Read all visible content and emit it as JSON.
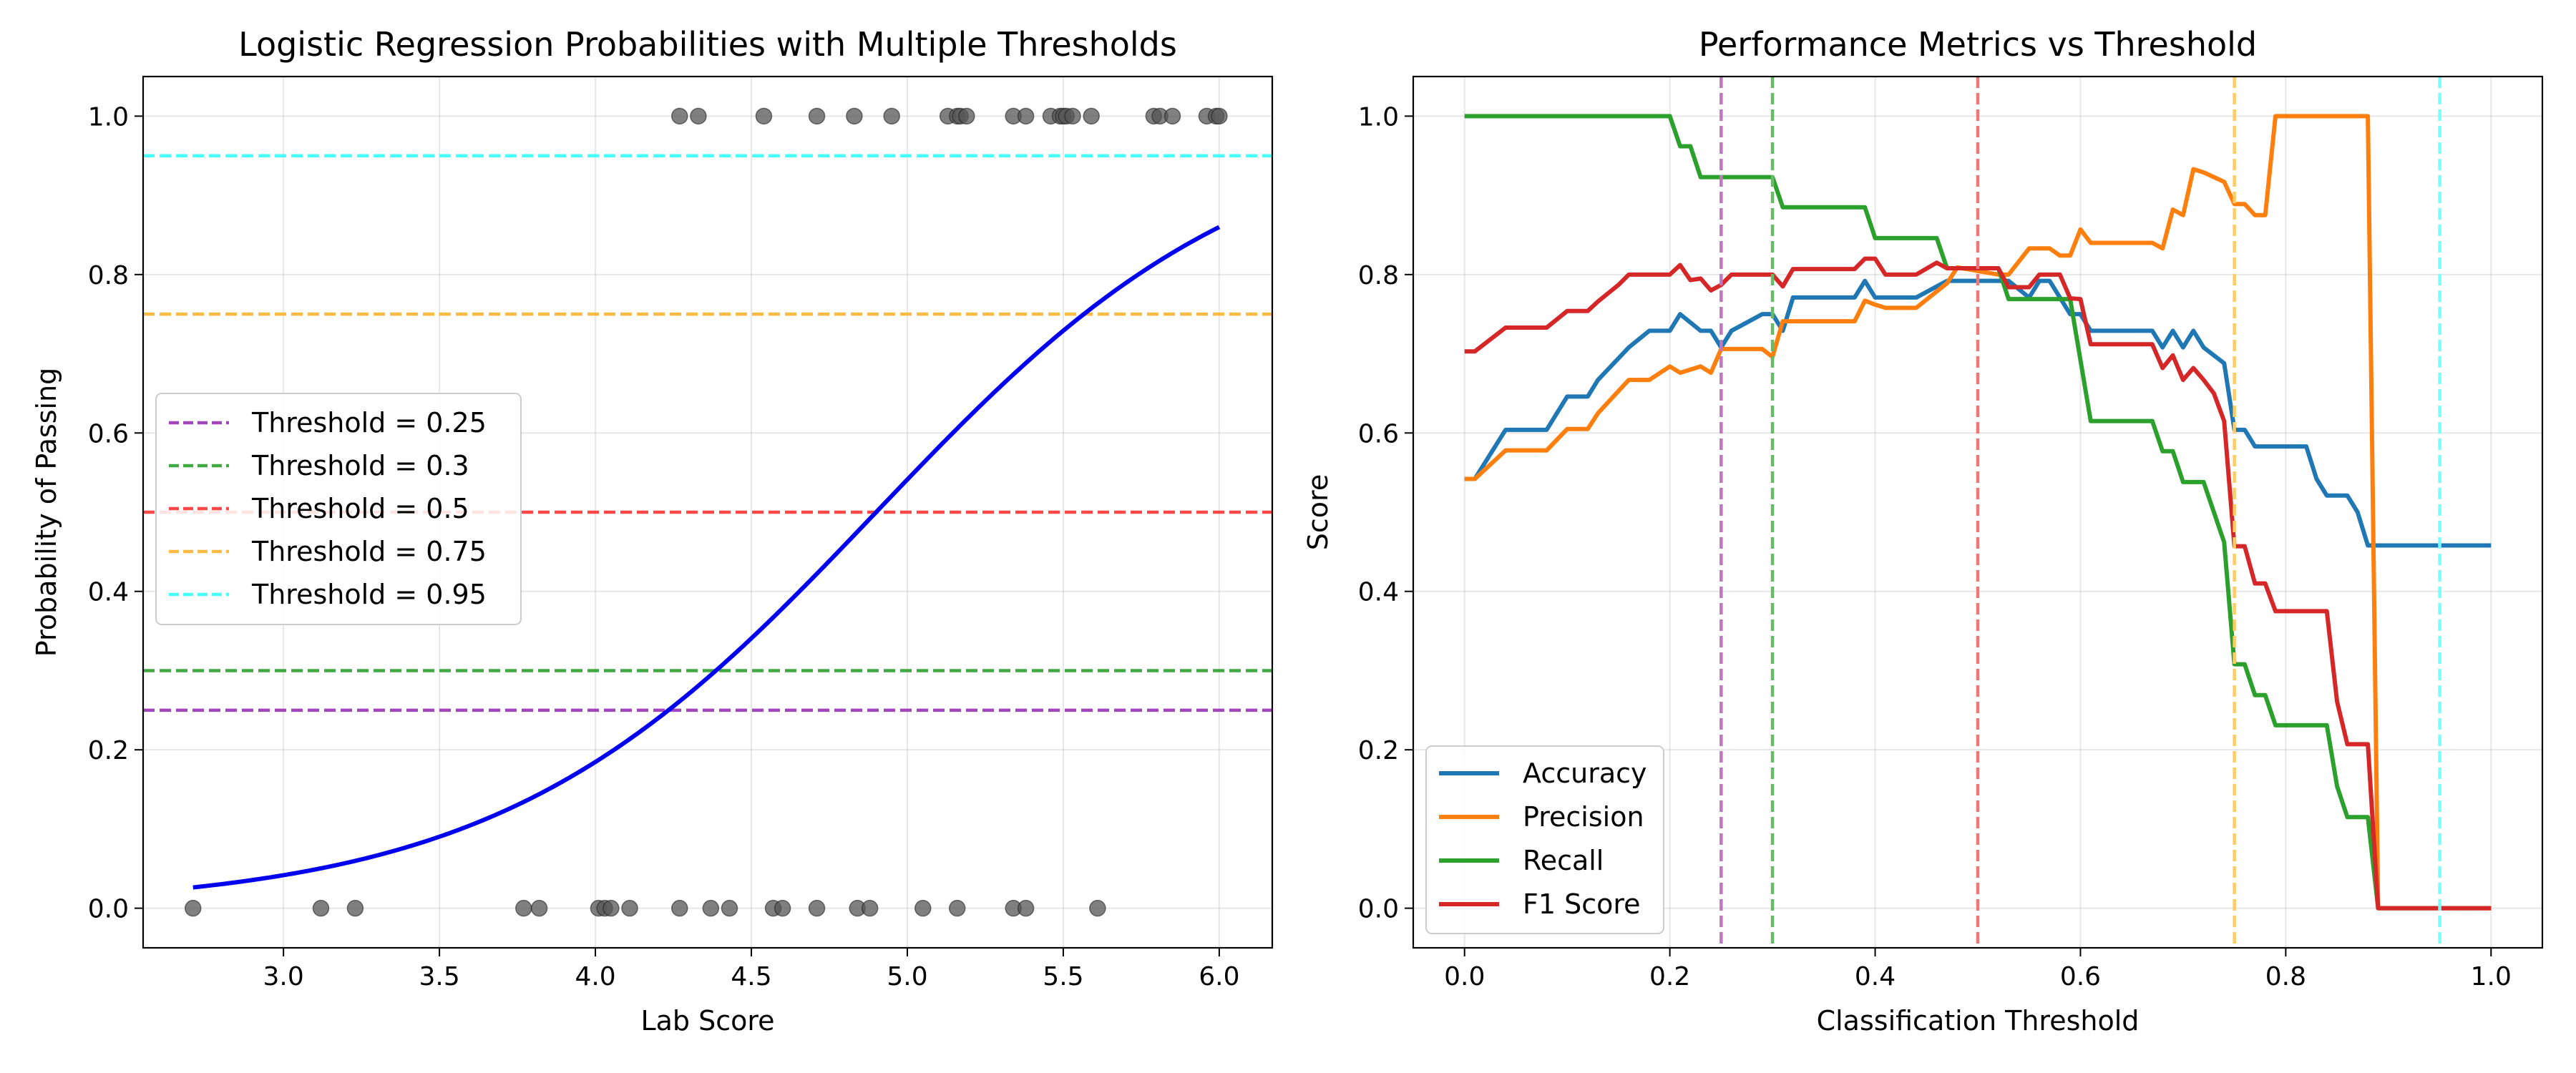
{
  "chart_data": [
    {
      "type": "scatter",
      "title": "Logistic Regression Probabilities with Multiple Thresholds",
      "xlabel": "Lab Score",
      "ylabel": "Probability of Passing",
      "xlim": [
        2.55,
        6.17
      ],
      "ylim": [
        -0.05,
        1.05
      ],
      "xticks": [
        3.0,
        3.5,
        4.0,
        4.5,
        5.0,
        5.5,
        6.0
      ],
      "xtick_labels": [
        "3.0",
        "3.5",
        "4.0",
        "4.5",
        "5.0",
        "5.5",
        "6.0"
      ],
      "yticks": [
        0.0,
        0.2,
        0.4,
        0.6,
        0.8,
        1.0
      ],
      "ytick_labels": [
        "0.0",
        "0.2",
        "0.4",
        "0.6",
        "0.8",
        "1.0"
      ],
      "grid": true,
      "legend_position": "center-left",
      "points_pass": [
        4.27,
        4.33,
        4.54,
        4.71,
        4.83,
        4.95,
        5.13,
        5.16,
        5.17,
        5.19,
        5.34,
        5.38,
        5.46,
        5.49,
        5.5,
        5.51,
        5.53,
        5.59,
        5.79,
        5.81,
        5.85,
        5.96,
        5.99,
        6.0
      ],
      "points_fail": [
        2.71,
        3.12,
        3.23,
        3.77,
        3.82,
        4.01,
        4.03,
        4.05,
        4.11,
        4.27,
        4.37,
        4.43,
        4.57,
        4.6,
        4.71,
        4.84,
        4.88,
        5.05,
        5.16,
        5.34,
        5.38,
        5.61
      ],
      "point_color": "#555555",
      "curve": {
        "x_start": 2.71,
        "x_end": 6.0,
        "midpoint": 4.9,
        "slope": 1.65,
        "color": "#0000ee"
      },
      "thresholds": [
        {
          "label": "Threshold = 0.25",
          "value": 0.25,
          "color": "#9932b4"
        },
        {
          "label": "Threshold = 0.3",
          "value": 0.3,
          "color": "#2ca02c"
        },
        {
          "label": "Threshold = 0.5",
          "value": 0.5,
          "color": "#ff3333"
        },
        {
          "label": "Threshold = 0.75",
          "value": 0.75,
          "color": "#ffb22e"
        },
        {
          "label": "Threshold = 0.95",
          "value": 0.95,
          "color": "#33ffff"
        }
      ]
    },
    {
      "type": "line",
      "title": "Performance Metrics vs Threshold",
      "xlabel": "Classification Threshold",
      "ylabel": "Score",
      "xlim": [
        -0.05,
        1.05
      ],
      "ylim": [
        -0.05,
        1.05
      ],
      "xticks": [
        0.0,
        0.2,
        0.4,
        0.6,
        0.8,
        1.0
      ],
      "xtick_labels": [
        "0.0",
        "0.2",
        "0.4",
        "0.6",
        "0.8",
        "1.0"
      ],
      "yticks": [
        0.0,
        0.2,
        0.4,
        0.6,
        0.8,
        1.0
      ],
      "ytick_labels": [
        "0.0",
        "0.2",
        "0.4",
        "0.6",
        "0.8",
        "1.0"
      ],
      "grid": true,
      "legend_position": "lower-left",
      "thresholds": [
        {
          "value": 0.25,
          "color": "#bf77bf"
        },
        {
          "value": 0.3,
          "color": "#66bb66"
        },
        {
          "value": 0.5,
          "color": "#ee7777"
        },
        {
          "value": 0.75,
          "color": "#ffcc66"
        },
        {
          "value": 0.95,
          "color": "#77ffff"
        }
      ],
      "series": [
        {
          "name": "Accuracy",
          "color": "#1f77b4",
          "x": [
            0.0,
            0.01,
            0.04,
            0.08,
            0.1,
            0.12,
            0.13,
            0.16,
            0.18,
            0.2,
            0.21,
            0.23,
            0.24,
            0.25,
            0.26,
            0.29,
            0.3,
            0.31,
            0.32,
            0.36,
            0.38,
            0.39,
            0.4,
            0.41,
            0.43,
            0.44,
            0.47,
            0.48,
            0.52,
            0.53,
            0.55,
            0.56,
            0.57,
            0.58,
            0.59,
            0.6,
            0.61,
            0.62,
            0.67,
            0.68,
            0.69,
            0.7,
            0.71,
            0.72,
            0.74,
            0.75,
            0.76,
            0.77,
            0.78,
            0.8,
            0.82,
            0.83,
            0.84,
            0.86,
            0.87,
            0.88,
            0.89,
            0.9,
            1.0
          ],
          "y": [
            0.542,
            0.542,
            0.604,
            0.604,
            0.646,
            0.646,
            0.667,
            0.708,
            0.729,
            0.729,
            0.75,
            0.729,
            0.729,
            0.708,
            0.729,
            0.75,
            0.75,
            0.729,
            0.771,
            0.771,
            0.771,
            0.792,
            0.771,
            0.771,
            0.771,
            0.771,
            0.792,
            0.792,
            0.792,
            0.792,
            0.771,
            0.792,
            0.792,
            0.771,
            0.75,
            0.75,
            0.729,
            0.729,
            0.729,
            0.708,
            0.729,
            0.708,
            0.729,
            0.708,
            0.688,
            0.604,
            0.604,
            0.583,
            0.583,
            0.583,
            0.583,
            0.542,
            0.521,
            0.521,
            0.5,
            0.458,
            0.458,
            0.458,
            0.458
          ]
        },
        {
          "name": "Precision",
          "color": "#ff7f0e",
          "x": [
            0.0,
            0.01,
            0.04,
            0.08,
            0.1,
            0.12,
            0.13,
            0.16,
            0.18,
            0.2,
            0.21,
            0.23,
            0.24,
            0.25,
            0.26,
            0.29,
            0.3,
            0.31,
            0.32,
            0.36,
            0.38,
            0.39,
            0.4,
            0.41,
            0.43,
            0.44,
            0.47,
            0.48,
            0.52,
            0.53,
            0.55,
            0.56,
            0.57,
            0.58,
            0.59,
            0.6,
            0.61,
            0.62,
            0.67,
            0.68,
            0.69,
            0.7,
            0.71,
            0.72,
            0.74,
            0.75,
            0.76,
            0.77,
            0.78,
            0.79,
            0.8,
            0.82,
            0.83,
            0.84,
            0.86,
            0.87,
            0.88,
            0.89,
            0.9,
            1.0
          ],
          "y": [
            0.542,
            0.542,
            0.578,
            0.578,
            0.605,
            0.605,
            0.625,
            0.667,
            0.667,
            0.684,
            0.676,
            0.684,
            0.676,
            0.706,
            0.706,
            0.706,
            0.696,
            0.741,
            0.741,
            0.741,
            0.741,
            0.767,
            0.762,
            0.758,
            0.758,
            0.758,
            0.789,
            0.809,
            0.8,
            0.8,
            0.833,
            0.833,
            0.833,
            0.824,
            0.824,
            0.857,
            0.84,
            0.84,
            0.84,
            0.833,
            0.882,
            0.875,
            0.933,
            0.929,
            0.917,
            0.889,
            0.889,
            0.875,
            0.875,
            1.0,
            1.0,
            1.0,
            1.0,
            1.0,
            1.0,
            1.0,
            1.0,
            0.0,
            0.0,
            0.0
          ]
        },
        {
          "name": "Recall",
          "color": "#2ca02c",
          "x": [
            0.0,
            0.2,
            0.21,
            0.22,
            0.23,
            0.3,
            0.31,
            0.39,
            0.4,
            0.46,
            0.47,
            0.52,
            0.53,
            0.59,
            0.6,
            0.61,
            0.67,
            0.68,
            0.69,
            0.7,
            0.71,
            0.72,
            0.73,
            0.74,
            0.75,
            0.76,
            0.77,
            0.78,
            0.79,
            0.84,
            0.85,
            0.86,
            0.87,
            0.88,
            0.89,
            1.0
          ],
          "y": [
            1.0,
            1.0,
            0.962,
            0.962,
            0.923,
            0.923,
            0.885,
            0.885,
            0.846,
            0.846,
            0.808,
            0.808,
            0.769,
            0.769,
            0.692,
            0.615,
            0.615,
            0.577,
            0.577,
            0.538,
            0.538,
            0.538,
            0.5,
            0.462,
            0.308,
            0.308,
            0.269,
            0.269,
            0.231,
            0.231,
            0.154,
            0.115,
            0.115,
            0.115,
            0.0,
            0.0
          ]
        },
        {
          "name": "F1 Score",
          "color": "#d62728",
          "x": [
            0.0,
            0.01,
            0.04,
            0.08,
            0.1,
            0.12,
            0.13,
            0.15,
            0.16,
            0.2,
            0.21,
            0.22,
            0.23,
            0.24,
            0.25,
            0.26,
            0.29,
            0.3,
            0.31,
            0.32,
            0.36,
            0.38,
            0.39,
            0.4,
            0.41,
            0.43,
            0.44,
            0.46,
            0.47,
            0.48,
            0.5,
            0.52,
            0.53,
            0.55,
            0.56,
            0.57,
            0.58,
            0.59,
            0.6,
            0.61,
            0.66,
            0.67,
            0.68,
            0.69,
            0.7,
            0.71,
            0.72,
            0.73,
            0.74,
            0.75,
            0.76,
            0.77,
            0.78,
            0.79,
            0.83,
            0.84,
            0.85,
            0.86,
            0.87,
            0.88,
            0.89,
            1.0
          ],
          "y": [
            0.703,
            0.703,
            0.733,
            0.733,
            0.754,
            0.754,
            0.766,
            0.787,
            0.8,
            0.8,
            0.812,
            0.793,
            0.795,
            0.78,
            0.787,
            0.8,
            0.8,
            0.8,
            0.785,
            0.807,
            0.807,
            0.807,
            0.82,
            0.82,
            0.8,
            0.8,
            0.8,
            0.815,
            0.808,
            0.808,
            0.808,
            0.808,
            0.784,
            0.784,
            0.8,
            0.8,
            0.8,
            0.77,
            0.769,
            0.712,
            0.712,
            0.712,
            0.682,
            0.698,
            0.667,
            0.682,
            0.667,
            0.65,
            0.615,
            0.457,
            0.457,
            0.41,
            0.41,
            0.375,
            0.375,
            0.375,
            0.261,
            0.207,
            0.207,
            0.207,
            0.0,
            0.0
          ]
        }
      ]
    }
  ]
}
